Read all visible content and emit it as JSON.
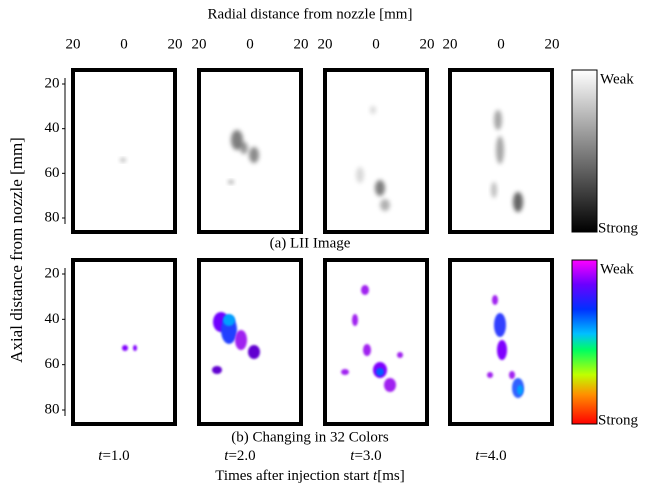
{
  "figure": {
    "x_axis_label": "Radial distance from nozzle  [mm]",
    "x_ticks": [
      "20",
      "0",
      "20"
    ],
    "y_axis_label": "Axial distance from nozzle  [mm]",
    "y_ticks": [
      "20",
      "40",
      "60",
      "80"
    ],
    "rows": [
      {
        "caption": "(a) LII Image",
        "colorbar": {
          "top": "Weak",
          "bottom": "Strong"
        }
      },
      {
        "caption": "(b) Changing in 32 Colors",
        "colorbar": {
          "top": "Weak",
          "bottom": "Strong"
        }
      }
    ],
    "time_var": "t",
    "times": [
      "=1.0",
      "=2.0",
      "=3.0",
      "=4.0"
    ],
    "time_axis_label": {
      "text": "Times after injection start",
      "var": "t",
      "unit": "[ms]"
    }
  }
}
